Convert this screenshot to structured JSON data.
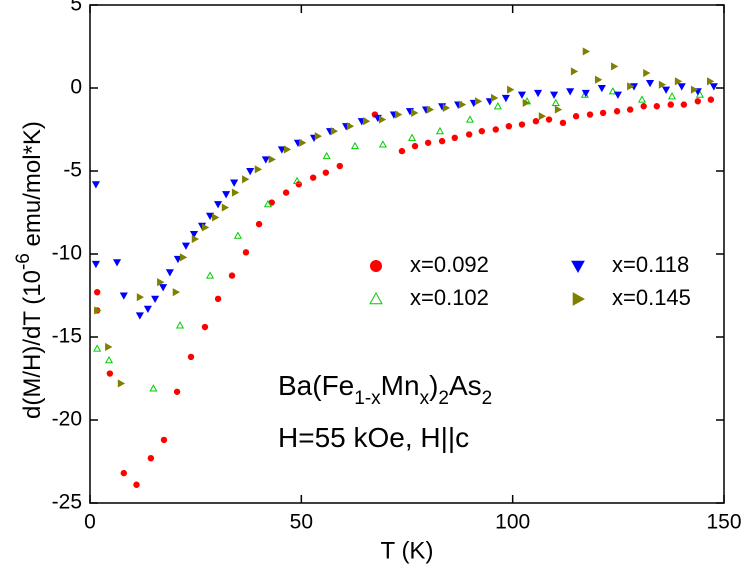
{
  "chart_data": {
    "type": "scatter",
    "xlabel": "T (K)",
    "ylabel_parts": [
      "d(M/H)/dT (10",
      "-6",
      " emu/mol*K)"
    ],
    "annotations": [
      [
        "Ba(Fe",
        "1-x",
        "Mn",
        "x",
        ")",
        "2",
        "As",
        "2"
      ],
      [
        "H=55 kOe, H||c"
      ]
    ],
    "xlim": [
      0,
      150
    ],
    "ylim": [
      -25,
      5
    ],
    "xticks": [
      0,
      50,
      100,
      150
    ],
    "yticks": [
      -25,
      -20,
      -15,
      -10,
      -5,
      0,
      5
    ],
    "legend": "center-right",
    "series": [
      {
        "name": "x=0.092",
        "color": "#ff0000",
        "marker": "circle",
        "x": [
          1.7,
          1.7,
          4.7,
          8,
          11,
          14.4,
          17.5,
          20.6,
          23.9,
          27.2,
          30.3,
          33.6,
          36.9,
          40,
          43,
          46.4,
          49.4,
          52.8,
          55.8,
          59.1,
          67.4,
          73.8,
          76.9,
          80,
          83.3,
          86.3,
          89.7,
          92.7,
          96,
          99.1,
          102.2,
          105.5,
          108.6,
          111.9,
          115,
          118.3,
          121.4,
          124.7,
          127.8,
          131,
          134.1,
          137.4,
          140.5,
          143.8,
          146.9
        ],
        "values": [
          -12.3,
          -13.4,
          -17.2,
          -23.2,
          -23.9,
          -22.3,
          -21.2,
          -18.3,
          -16.2,
          -14.4,
          -12.7,
          -11.3,
          -9.9,
          -8.2,
          -6.9,
          -6.3,
          -5.8,
          -5.4,
          -5.1,
          -4.7,
          -1.6,
          -3.8,
          -3.5,
          -3.3,
          -3.2,
          -3.0,
          -2.8,
          -2.6,
          -2.5,
          -2.3,
          -2.2,
          -2.0,
          -1.9,
          -2.1,
          -1.7,
          -1.6,
          -1.5,
          -1.4,
          -1.3,
          -1.1,
          -1.1,
          -1.0,
          -1.0,
          -0.8,
          -0.7
        ]
      },
      {
        "name": "x=0.102",
        "color": "#00cc00",
        "marker": "triangle-up-open",
        "x": [
          1.7,
          4.5,
          15,
          21.3,
          28.4,
          35,
          42.1,
          49,
          56,
          62.7,
          69.3,
          76.2,
          82.8,
          89.9,
          96.5,
          103.4,
          110.2,
          117.1,
          123.7,
          130.6,
          137.7,
          144.3
        ],
        "values": [
          -15.7,
          -16.4,
          -18.1,
          -14.3,
          -11.3,
          -8.9,
          -7.0,
          -5.6,
          -4.1,
          -3.5,
          -3.4,
          -3.0,
          -2.6,
          -1.9,
          -1.1,
          -0.8,
          -0.9,
          -0.4,
          -0.2,
          -0.7,
          -0.5,
          -0.4
        ]
      },
      {
        "name": "x=0.118",
        "color": "#0000ff",
        "marker": "triangle-down",
        "x": [
          1.4,
          1.4,
          6.4,
          8,
          11.8,
          13.7,
          15.4,
          17.3,
          18.9,
          20.8,
          22.7,
          24.6,
          26.5,
          28.4,
          30.3,
          32.2,
          34.1,
          37.9,
          41.6,
          45.4,
          49.2,
          53,
          56.8,
          60.6,
          64.3,
          68.1,
          71.9,
          75.7,
          79.5,
          83.3,
          87.1,
          90.8,
          94.6,
          98.4,
          102.2,
          106,
          109.8,
          113.6,
          117.3,
          121.1,
          124.9,
          128.7,
          132.5,
          136.3,
          140,
          143.8,
          147.6
        ],
        "values": [
          -5.8,
          -10.6,
          -10.5,
          -12.5,
          -13.7,
          -13.3,
          -12.7,
          -12.0,
          -11.1,
          -10.3,
          -9.5,
          -8.8,
          -8.3,
          -7.7,
          -7.0,
          -6.4,
          -5.7,
          -5.0,
          -4.3,
          -3.7,
          -3.3,
          -3.0,
          -2.6,
          -2.3,
          -2.0,
          -1.8,
          -1.6,
          -1.4,
          -1.3,
          -1.1,
          -1.0,
          -0.9,
          -0.8,
          -0.6,
          -0.4,
          -0.3,
          -0.4,
          -0.2,
          -0.3,
          0,
          -0.4,
          0.1,
          0.3,
          -0.1,
          0.1,
          -0.2,
          0.1
        ]
      },
      {
        "name": "x=0.145",
        "color": "#808000",
        "marker": "triangle-right",
        "x": [
          1.7,
          4.3,
          7.3,
          11.8,
          16.6,
          20.3,
          22,
          24.8,
          27.2,
          29.6,
          31.9,
          34.3,
          36.7,
          39.7,
          43,
          46.6,
          50.2,
          53.9,
          57.7,
          61.5,
          65.3,
          69.1,
          72.9,
          76.7,
          80.4,
          84.2,
          88,
          91.8,
          95.6,
          99.4,
          103.1,
          106.9,
          110.7,
          114.5,
          117.3,
          120.2,
          124,
          127.8,
          131.6,
          135.3,
          139.1,
          142.9,
          146.7
        ],
        "values": [
          -13.4,
          -15.6,
          -17.8,
          -12.6,
          -11.7,
          -12.3,
          -10.2,
          -9.1,
          -8.4,
          -7.8,
          -7.2,
          -6.3,
          -5.5,
          -4.9,
          -4.3,
          -3.7,
          -3.3,
          -2.9,
          -2.6,
          -2.3,
          -2.0,
          -1.9,
          -1.6,
          -1.5,
          -1.3,
          -1.2,
          -1.0,
          -0.8,
          -0.6,
          -0.1,
          -0.9,
          -1.7,
          -1.3,
          1.0,
          2.2,
          0.5,
          1.3,
          0.1,
          0.9,
          0.2,
          0.4,
          -0.1,
          0.4
        ]
      }
    ]
  }
}
